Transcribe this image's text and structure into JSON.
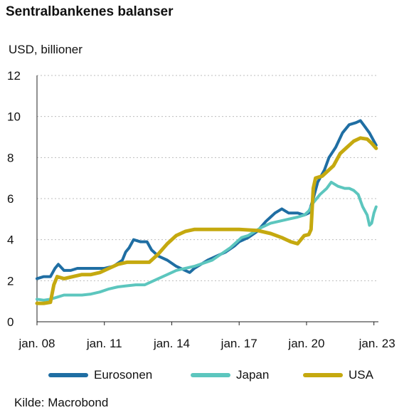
{
  "title": "Sentralbankenes balanser",
  "unit_label": "USD, billioner",
  "source": "Kilde: Macrobond",
  "chart_data": {
    "type": "line",
    "ylim": [
      0,
      12
    ],
    "yticks": [
      0,
      2,
      4,
      6,
      8,
      10,
      12
    ],
    "xlim": [
      2008.0,
      2023.2
    ],
    "xticks": [
      {
        "label": "jan. 08",
        "x": 2008
      },
      {
        "label": "jan. 11",
        "x": 2011
      },
      {
        "label": "jan. 14",
        "x": 2014
      },
      {
        "label": "jan. 17",
        "x": 2017
      },
      {
        "label": "jan. 20",
        "x": 2020
      },
      {
        "label": "jan. 23",
        "x": 2023
      }
    ],
    "grid": "horizontal dashed",
    "legend_position": "bottom",
    "series": [
      {
        "name": "Eurosonen",
        "color": "#1f6ea3",
        "points": [
          [
            2008.0,
            2.1
          ],
          [
            2008.3,
            2.2
          ],
          [
            2008.6,
            2.2
          ],
          [
            2008.8,
            2.6
          ],
          [
            2008.95,
            2.8
          ],
          [
            2009.2,
            2.5
          ],
          [
            2009.5,
            2.5
          ],
          [
            2009.8,
            2.6
          ],
          [
            2010.2,
            2.6
          ],
          [
            2010.6,
            2.6
          ],
          [
            2011.0,
            2.6
          ],
          [
            2011.4,
            2.7
          ],
          [
            2011.8,
            3.0
          ],
          [
            2011.95,
            3.4
          ],
          [
            2012.1,
            3.6
          ],
          [
            2012.3,
            4.0
          ],
          [
            2012.6,
            3.9
          ],
          [
            2012.9,
            3.9
          ],
          [
            2013.1,
            3.5
          ],
          [
            2013.4,
            3.2
          ],
          [
            2013.8,
            3.0
          ],
          [
            2014.2,
            2.7
          ],
          [
            2014.6,
            2.5
          ],
          [
            2014.8,
            2.4
          ],
          [
            2015.0,
            2.6
          ],
          [
            2015.3,
            2.8
          ],
          [
            2015.6,
            3.0
          ],
          [
            2016.0,
            3.2
          ],
          [
            2016.4,
            3.4
          ],
          [
            2016.8,
            3.7
          ],
          [
            2017.0,
            3.9
          ],
          [
            2017.4,
            4.1
          ],
          [
            2017.8,
            4.4
          ],
          [
            2018.2,
            4.9
          ],
          [
            2018.6,
            5.3
          ],
          [
            2018.9,
            5.5
          ],
          [
            2019.2,
            5.3
          ],
          [
            2019.6,
            5.3
          ],
          [
            2019.9,
            5.2
          ],
          [
            2020.1,
            5.3
          ],
          [
            2020.3,
            6.0
          ],
          [
            2020.5,
            6.8
          ],
          [
            2020.8,
            7.4
          ],
          [
            2021.0,
            8.0
          ],
          [
            2021.3,
            8.5
          ],
          [
            2021.6,
            9.2
          ],
          [
            2021.9,
            9.6
          ],
          [
            2022.2,
            9.7
          ],
          [
            2022.4,
            9.8
          ],
          [
            2022.6,
            9.5
          ],
          [
            2022.8,
            9.2
          ],
          [
            2023.0,
            8.8
          ],
          [
            2023.1,
            8.6
          ]
        ]
      },
      {
        "name": "Japan",
        "color": "#5cc6be",
        "points": [
          [
            2008.0,
            1.1
          ],
          [
            2008.3,
            1.05
          ],
          [
            2008.6,
            1.1
          ],
          [
            2008.9,
            1.2
          ],
          [
            2009.2,
            1.3
          ],
          [
            2009.6,
            1.3
          ],
          [
            2010.0,
            1.3
          ],
          [
            2010.4,
            1.35
          ],
          [
            2010.8,
            1.45
          ],
          [
            2011.2,
            1.6
          ],
          [
            2011.6,
            1.7
          ],
          [
            2012.0,
            1.75
          ],
          [
            2012.4,
            1.8
          ],
          [
            2012.8,
            1.8
          ],
          [
            2013.0,
            1.9
          ],
          [
            2013.4,
            2.1
          ],
          [
            2013.8,
            2.3
          ],
          [
            2014.2,
            2.5
          ],
          [
            2014.6,
            2.6
          ],
          [
            2015.0,
            2.7
          ],
          [
            2015.4,
            2.85
          ],
          [
            2015.8,
            3.0
          ],
          [
            2016.2,
            3.3
          ],
          [
            2016.6,
            3.6
          ],
          [
            2016.9,
            3.9
          ],
          [
            2017.1,
            4.1
          ],
          [
            2017.4,
            4.2
          ],
          [
            2017.7,
            4.4
          ],
          [
            2018.0,
            4.6
          ],
          [
            2018.4,
            4.8
          ],
          [
            2018.8,
            4.9
          ],
          [
            2019.2,
            5.0
          ],
          [
            2019.6,
            5.1
          ],
          [
            2019.9,
            5.2
          ],
          [
            2020.1,
            5.4
          ],
          [
            2020.3,
            5.8
          ],
          [
            2020.6,
            6.2
          ],
          [
            2020.9,
            6.5
          ],
          [
            2021.1,
            6.8
          ],
          [
            2021.4,
            6.6
          ],
          [
            2021.7,
            6.5
          ],
          [
            2021.9,
            6.5
          ],
          [
            2022.1,
            6.4
          ],
          [
            2022.3,
            6.2
          ],
          [
            2022.5,
            5.6
          ],
          [
            2022.7,
            5.2
          ],
          [
            2022.8,
            4.7
          ],
          [
            2022.9,
            4.8
          ],
          [
            2023.0,
            5.3
          ],
          [
            2023.1,
            5.6
          ]
        ]
      },
      {
        "name": "USA",
        "color": "#c5a90f",
        "points": [
          [
            2008.0,
            0.9
          ],
          [
            2008.3,
            0.9
          ],
          [
            2008.6,
            0.95
          ],
          [
            2008.75,
            1.8
          ],
          [
            2008.9,
            2.2
          ],
          [
            2009.2,
            2.1
          ],
          [
            2009.6,
            2.2
          ],
          [
            2010.0,
            2.3
          ],
          [
            2010.4,
            2.3
          ],
          [
            2010.8,
            2.4
          ],
          [
            2011.2,
            2.6
          ],
          [
            2011.6,
            2.8
          ],
          [
            2012.0,
            2.9
          ],
          [
            2012.5,
            2.9
          ],
          [
            2013.0,
            2.9
          ],
          [
            2013.4,
            3.3
          ],
          [
            2013.8,
            3.8
          ],
          [
            2014.2,
            4.2
          ],
          [
            2014.6,
            4.4
          ],
          [
            2015.0,
            4.5
          ],
          [
            2016.0,
            4.5
          ],
          [
            2017.0,
            4.5
          ],
          [
            2017.8,
            4.45
          ],
          [
            2018.4,
            4.3
          ],
          [
            2018.9,
            4.1
          ],
          [
            2019.3,
            3.9
          ],
          [
            2019.6,
            3.8
          ],
          [
            2019.9,
            4.2
          ],
          [
            2020.1,
            4.25
          ],
          [
            2020.2,
            4.5
          ],
          [
            2020.3,
            6.5
          ],
          [
            2020.4,
            7.0
          ],
          [
            2020.7,
            7.1
          ],
          [
            2020.9,
            7.3
          ],
          [
            2021.2,
            7.6
          ],
          [
            2021.5,
            8.2
          ],
          [
            2021.8,
            8.5
          ],
          [
            2022.1,
            8.8
          ],
          [
            2022.4,
            8.95
          ],
          [
            2022.7,
            8.9
          ],
          [
            2022.9,
            8.7
          ],
          [
            2023.1,
            8.45
          ]
        ]
      }
    ]
  }
}
